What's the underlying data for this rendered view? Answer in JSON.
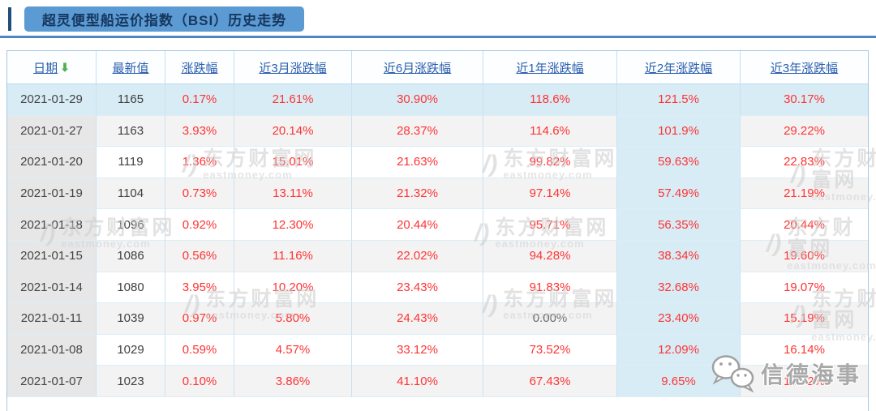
{
  "page": {
    "title": "超灵便型船运价指数（BSI）历史走势"
  },
  "table": {
    "columns": [
      {
        "label": "日期",
        "key": "date",
        "sorted": true,
        "sort_icon": "green-down-arrow"
      },
      {
        "label": "最新值",
        "key": "latest-value"
      },
      {
        "label": "涨跌幅",
        "key": "change"
      },
      {
        "label": "近3月涨跌幅",
        "key": "change-3m"
      },
      {
        "label": "近6月涨跌幅",
        "key": "change-6m"
      },
      {
        "label": "近1年涨跌幅",
        "key": "change-1y"
      },
      {
        "label": "近2年涨跌幅",
        "key": "change-2y"
      },
      {
        "label": "近3年涨跌幅",
        "key": "change-3y"
      }
    ],
    "rows": [
      [
        "2021-01-29",
        "1165",
        "0.17%",
        "21.61%",
        "30.90%",
        "118.6%",
        "121.5%",
        "30.17%"
      ],
      [
        "2021-01-27",
        "1163",
        "3.93%",
        "20.14%",
        "28.37%",
        "114.6%",
        "101.9%",
        "29.22%"
      ],
      [
        "2021-01-20",
        "1119",
        "1.36%",
        "15.01%",
        "21.63%",
        "99.82%",
        "59.63%",
        "22.83%"
      ],
      [
        "2021-01-19",
        "1104",
        "0.73%",
        "13.11%",
        "21.32%",
        "97.14%",
        "57.49%",
        "21.19%"
      ],
      [
        "2021-01-18",
        "1096",
        "0.92%",
        "12.30%",
        "20.44%",
        "95.71%",
        "56.35%",
        "20.44%"
      ],
      [
        "2021-01-15",
        "1086",
        "0.56%",
        "11.16%",
        "22.02%",
        "94.28%",
        "38.34%",
        "19.60%"
      ],
      [
        "2021-01-14",
        "1080",
        "3.95%",
        "10.20%",
        "23.43%",
        "91.83%",
        "32.68%",
        "19.07%"
      ],
      [
        "2021-01-11",
        "1039",
        "0.97%",
        "5.80%",
        "24.43%",
        "0.00%",
        "23.40%",
        "15.19%"
      ],
      [
        "2021-01-08",
        "1029",
        "0.59%",
        "4.57%",
        "33.12%",
        "73.52%",
        "12.09%",
        "16.14%"
      ],
      [
        "2021-01-07",
        "1023",
        "0.10%",
        "3.86%",
        "41.10%",
        "67.43%",
        "9.65%",
        "15.72%"
      ]
    ],
    "neutral_value": "0.00%"
  },
  "watermark": {
    "site_name": "东方财富网",
    "site_domain": "eastmoney.com",
    "logo_icon": "eastmoney-swoosh-icon"
  },
  "brand": {
    "text": "信德海事",
    "icon": "wechat-icon"
  },
  "colors": {
    "tab_blue": "#5b9ad2",
    "underline_blue": "#4c86c6",
    "title_text": "#16375e",
    "header_link_blue": "#2b5fae",
    "sort_arrow_green": "#4fb14f",
    "value_red": "#ff3333",
    "value_neutral": "#666666",
    "highlight_blue": "#d8ecf6",
    "stripe_gray": "#f3f3f3",
    "date_column_gray": "#e7e7e7",
    "table_border": "#a3c8e2"
  }
}
